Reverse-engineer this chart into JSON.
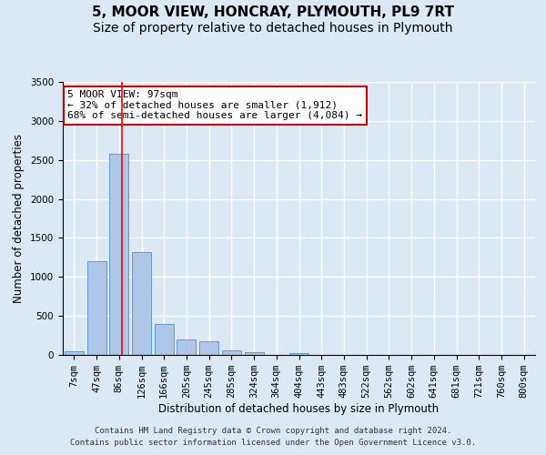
{
  "title_line1": "5, MOOR VIEW, HONCRAY, PLYMOUTH, PL9 7RT",
  "title_line2": "Size of property relative to detached houses in Plymouth",
  "xlabel": "Distribution of detached houses by size in Plymouth",
  "ylabel": "Number of detached properties",
  "categories": [
    "7sqm",
    "47sqm",
    "86sqm",
    "126sqm",
    "166sqm",
    "205sqm",
    "245sqm",
    "285sqm",
    "324sqm",
    "364sqm",
    "404sqm",
    "443sqm",
    "483sqm",
    "522sqm",
    "562sqm",
    "602sqm",
    "641sqm",
    "681sqm",
    "721sqm",
    "760sqm",
    "800sqm"
  ],
  "values": [
    45,
    1200,
    2580,
    1320,
    395,
    200,
    170,
    55,
    30,
    5,
    20,
    5,
    0,
    0,
    0,
    0,
    0,
    0,
    0,
    0,
    0
  ],
  "bar_color": "#aec6e8",
  "bar_edge_color": "#5b9bd5",
  "background_color": "#dce9f5",
  "plot_bg_color": "#dce9f5",
  "grid_color": "#ffffff",
  "ylim": [
    0,
    3500
  ],
  "yticks": [
    0,
    500,
    1000,
    1500,
    2000,
    2500,
    3000,
    3500
  ],
  "annotation_line1": "5 MOOR VIEW: 97sqm",
  "annotation_line2": "← 32% of detached houses are smaller (1,912)",
  "annotation_line3": "68% of semi-detached houses are larger (4,084) →",
  "annotation_box_color": "#ffffff",
  "annotation_box_edge_color": "#cc0000",
  "footer_line1": "Contains HM Land Registry data © Crown copyright and database right 2024.",
  "footer_line2": "Contains public sector information licensed under the Open Government Licence v3.0.",
  "title_fontsize": 11,
  "subtitle_fontsize": 10,
  "axis_label_fontsize": 8.5,
  "tick_fontsize": 7.5,
  "annotation_fontsize": 8,
  "footer_fontsize": 6.5
}
